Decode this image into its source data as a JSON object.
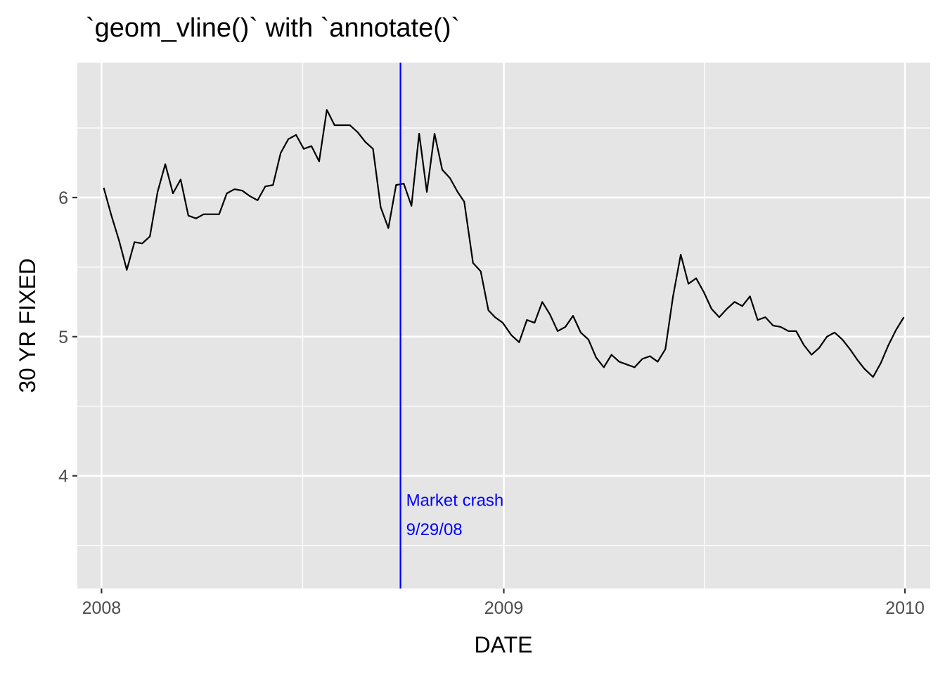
{
  "chart_data": {
    "type": "line",
    "title": "`geom_vline()` with `annotate()`",
    "xlabel": "DATE",
    "ylabel": "30 YR FIXED",
    "x_ticks": [
      "2008",
      "2009",
      "2010"
    ],
    "y_ticks": [
      "4",
      "5",
      "6"
    ],
    "xlim": [
      "2007-12-10",
      "2010-01-24"
    ],
    "ylim": [
      3.19,
      6.97
    ],
    "grid": true,
    "background": "#E5E5E5",
    "line_color": "#000000",
    "series": [
      {
        "x": [
          "2008-01-03",
          "2008-01-10",
          "2008-01-17",
          "2008-01-24",
          "2008-01-31",
          "2008-02-07",
          "2008-02-14",
          "2008-02-21",
          "2008-02-28",
          "2008-03-06",
          "2008-03-13",
          "2008-03-20",
          "2008-03-27",
          "2008-04-03",
          "2008-04-10",
          "2008-04-17",
          "2008-04-24",
          "2008-05-01",
          "2008-05-08",
          "2008-05-15",
          "2008-05-22",
          "2008-05-29",
          "2008-06-05",
          "2008-06-12",
          "2008-06-19",
          "2008-06-26",
          "2008-07-03",
          "2008-07-10",
          "2008-07-17",
          "2008-07-24",
          "2008-07-31",
          "2008-08-07",
          "2008-08-14",
          "2008-08-21",
          "2008-08-28",
          "2008-09-04",
          "2008-09-11",
          "2008-09-18",
          "2008-09-25",
          "2008-10-02",
          "2008-10-09",
          "2008-10-16",
          "2008-10-23",
          "2008-10-30",
          "2008-11-06",
          "2008-11-13",
          "2008-11-20",
          "2008-11-26",
          "2008-12-04",
          "2008-12-11",
          "2008-12-18",
          "2008-12-24",
          "2008-12-31",
          "2009-01-08",
          "2009-01-15",
          "2009-01-22",
          "2009-01-29",
          "2009-02-05",
          "2009-02-12",
          "2009-02-19",
          "2009-02-26",
          "2009-03-05",
          "2009-03-12",
          "2009-03-19",
          "2009-03-26",
          "2009-04-02",
          "2009-04-09",
          "2009-04-16",
          "2009-04-23",
          "2009-04-30",
          "2009-05-07",
          "2009-05-14",
          "2009-05-21",
          "2009-05-28",
          "2009-06-04",
          "2009-06-11",
          "2009-06-18",
          "2009-06-25",
          "2009-07-02",
          "2009-07-09",
          "2009-07-16",
          "2009-07-23",
          "2009-07-30",
          "2009-08-06",
          "2009-08-13",
          "2009-08-20",
          "2009-08-27",
          "2009-09-03",
          "2009-09-10",
          "2009-09-17",
          "2009-09-24",
          "2009-10-01",
          "2009-10-08",
          "2009-10-15",
          "2009-10-22",
          "2009-10-29",
          "2009-11-05",
          "2009-11-12",
          "2009-11-19",
          "2009-11-25",
          "2009-12-03",
          "2009-12-10",
          "2009-12-17",
          "2009-12-24",
          "2009-12-31"
        ],
        "values": [
          6.07,
          5.87,
          5.69,
          5.48,
          5.68,
          5.67,
          5.72,
          6.04,
          6.24,
          6.03,
          6.13,
          5.87,
          5.85,
          5.88,
          5.88,
          5.88,
          6.03,
          6.06,
          6.05,
          6.01,
          5.98,
          6.08,
          6.09,
          6.32,
          6.42,
          6.45,
          6.35,
          6.37,
          6.26,
          6.63,
          6.52,
          6.52,
          6.52,
          6.47,
          6.4,
          6.35,
          5.93,
          5.78,
          6.09,
          6.1,
          5.94,
          6.46,
          6.04,
          6.46,
          6.2,
          6.14,
          6.04,
          5.97,
          5.53,
          5.47,
          5.19,
          5.14,
          5.1,
          5.01,
          4.96,
          5.12,
          5.1,
          5.25,
          5.16,
          5.04,
          5.07,
          5.15,
          5.03,
          4.98,
          4.85,
          4.78,
          4.87,
          4.82,
          4.8,
          4.78,
          4.84,
          4.86,
          4.82,
          4.91,
          5.29,
          5.59,
          5.38,
          5.42,
          5.32,
          5.2,
          5.14,
          5.2,
          5.25,
          5.22,
          5.29,
          5.12,
          5.14,
          5.08,
          5.07,
          5.04,
          5.04,
          4.94,
          4.87,
          4.92,
          5.0,
          5.03,
          4.98,
          4.91,
          4.83,
          4.77,
          4.71,
          4.81,
          4.94,
          5.05,
          5.14
        ]
      }
    ],
    "vline": {
      "x": "2008-09-29",
      "color": "#0000FF"
    },
    "annotation": {
      "x": "2008-09-29",
      "lines": [
        "Market crash",
        "9/29/08"
      ],
      "y": [
        3.83,
        3.62
      ],
      "color": "#0000FF"
    }
  }
}
